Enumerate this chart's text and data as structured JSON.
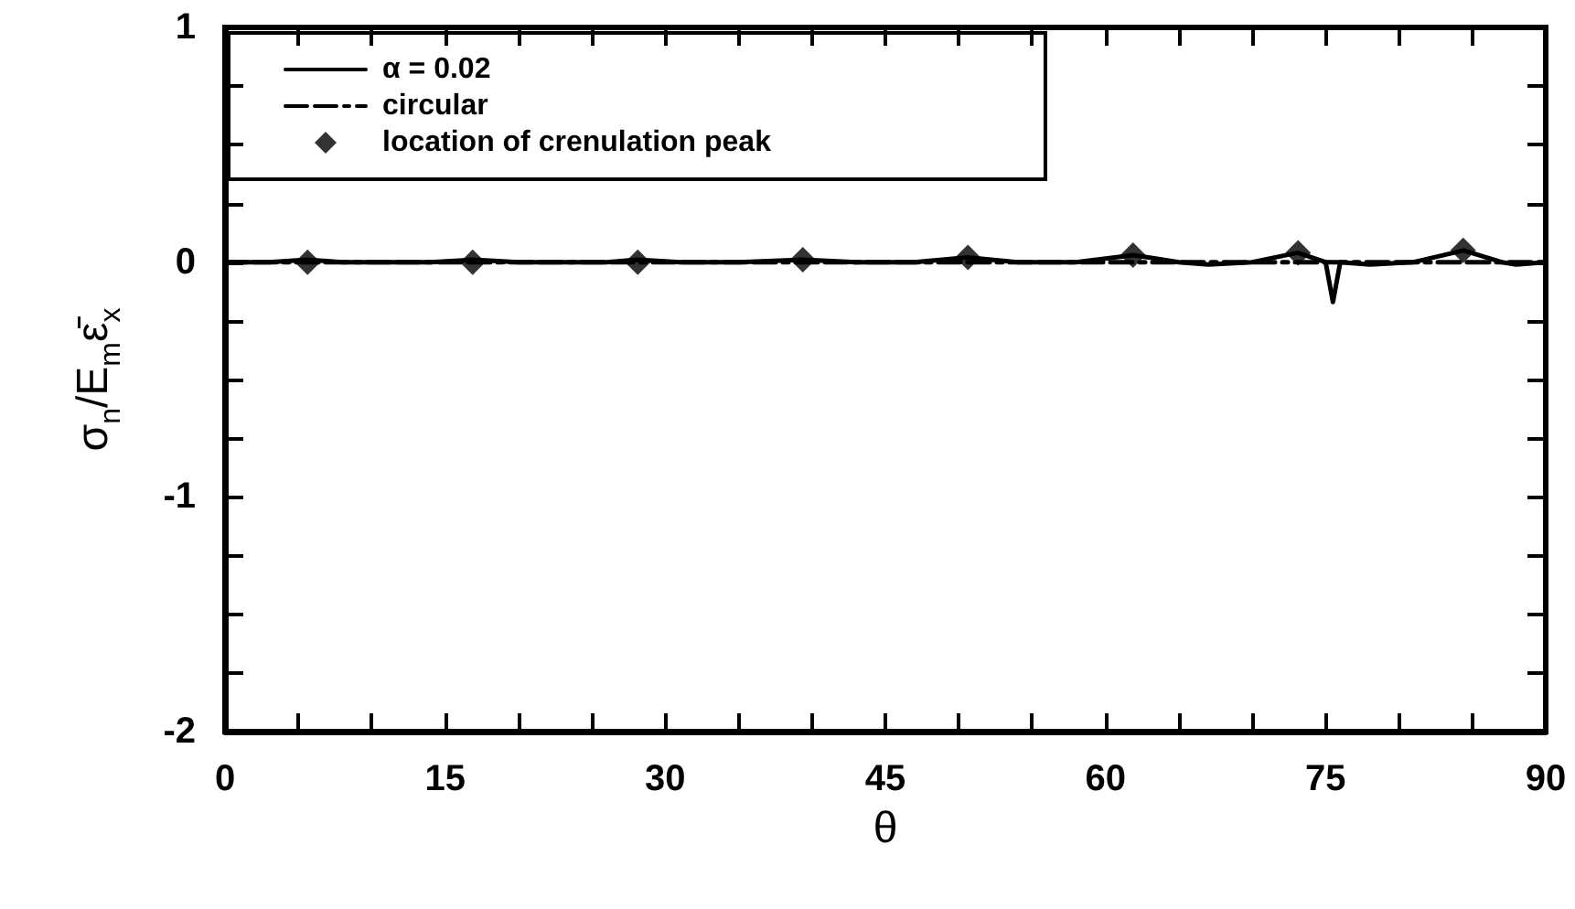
{
  "chart_data": {
    "type": "line",
    "xlabel": "θ",
    "ylabel": "σ$_{n}$/E$_{m}$ε̄$_{x}$",
    "xlim": [
      0,
      90
    ],
    "ylim": [
      -2,
      1
    ],
    "xticks": [
      0,
      {
        "value": 5,
        "label": null
      },
      {
        "value": 10,
        "label": null
      },
      15,
      {
        "value": 20,
        "label": null
      },
      {
        "value": 25,
        "label": null
      },
      30,
      {
        "value": 35,
        "label": null
      },
      {
        "value": 40,
        "label": null
      },
      45,
      {
        "value": 50,
        "label": null
      },
      {
        "value": 55,
        "label": null
      },
      60,
      {
        "value": 65,
        "label": null
      },
      {
        "value": 70,
        "label": null
      },
      75,
      {
        "value": 80,
        "label": null
      },
      {
        "value": 85,
        "label": null
      },
      90
    ],
    "yticks": [
      -2,
      {
        "value": -1.75,
        "label": null
      },
      {
        "value": -1.5,
        "label": null
      },
      {
        "value": -1.25,
        "label": null
      },
      -1,
      {
        "value": -0.75,
        "label": null
      },
      {
        "value": -0.5,
        "label": null
      },
      {
        "value": -0.25,
        "label": null
      },
      0,
      {
        "value": 0.25,
        "label": null
      },
      {
        "value": 0.5,
        "label": null
      },
      {
        "value": 0.75,
        "label": null
      },
      1
    ],
    "grid": false,
    "legend": "top left",
    "series": [
      {
        "name": "α = 0.02",
        "type": "line",
        "color": "#000000",
        "marker": "none",
        "line_style": "solid",
        "x": [
          0,
          3,
          5.6,
          8,
          11,
          14,
          16.9,
          20,
          23,
          26,
          28.1,
          31,
          35,
          39.4,
          43,
          47,
          50.6,
          54,
          58,
          61.9,
          65,
          67,
          70,
          73.1,
          75,
          75.5,
          76,
          78,
          81,
          84.4,
          87,
          88,
          90
        ],
        "values": [
          0,
          0,
          0.01,
          0,
          0,
          0,
          0.01,
          0,
          0,
          0,
          0.01,
          0,
          0,
          0.01,
          0,
          0,
          0.02,
          0,
          0,
          0.03,
          0,
          -0.01,
          0,
          0.04,
          0,
          -0.17,
          0,
          -0.01,
          0,
          0.05,
          0,
          -0.01,
          0
        ]
      },
      {
        "name": "circular",
        "type": "line",
        "color": "#000000",
        "marker": "none",
        "line_style": "dashed",
        "x": [
          0,
          45,
          90
        ],
        "values": [
          0,
          0,
          0
        ]
      },
      {
        "name": "location of crenulation peak",
        "type": "scatter",
        "color": "#000000",
        "marker": "diamond",
        "x": [
          5.625,
          16.875,
          28.125,
          39.375,
          50.625,
          61.875,
          73.125,
          84.375
        ],
        "values": [
          0,
          0,
          0,
          0.01,
          0.02,
          0.03,
          0.04,
          0.05
        ]
      }
    ]
  }
}
